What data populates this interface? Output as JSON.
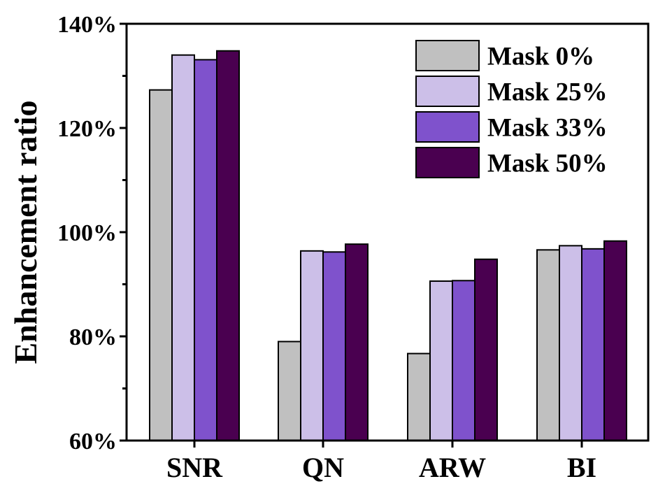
{
  "chart_data": {
    "type": "bar",
    "title": "",
    "xlabel": "",
    "ylabel": "Enhancement ratio",
    "ylim": [
      60,
      140
    ],
    "y_ticks": [
      "60%",
      "80%",
      "100%",
      "120%",
      "140%"
    ],
    "categories": [
      "SNR",
      "QN",
      "ARW",
      "BI"
    ],
    "series": [
      {
        "name": "Mask 0%",
        "color": "#c0c0c0",
        "values": [
          127.3,
          79.0,
          76.7,
          96.6
        ]
      },
      {
        "name": "Mask 25%",
        "color": "#ccbfe8",
        "values": [
          134.0,
          96.4,
          90.6,
          97.4
        ]
      },
      {
        "name": "Mask 33%",
        "color": "#7f52cc",
        "values": [
          133.1,
          96.2,
          90.7,
          96.8
        ]
      },
      {
        "name": "Mask 50%",
        "color": "#4a0050",
        "values": [
          134.8,
          97.7,
          94.8,
          98.3
        ]
      }
    ],
    "legend_position": "top-right",
    "grid": false
  }
}
